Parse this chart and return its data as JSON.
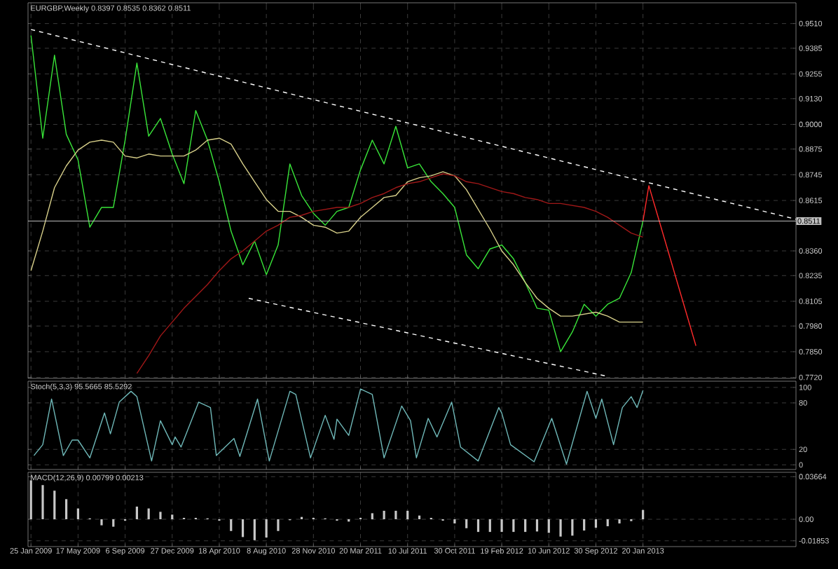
{
  "chart_data": [
    {
      "type": "line",
      "title": "EURGBP,Weekly  0.8397 0.8535 0.8362 0.8511",
      "grid": true,
      "tick_labels": "y",
      "xlim": [
        "2009-01-18",
        "2014-01-19"
      ],
      "xticks": [
        "2009-01-25",
        "2009-05-17",
        "2009-09-06",
        "2009-12-27",
        "2010-04-18",
        "2010-08-08",
        "2010-11-28",
        "2011-03-20",
        "2011-07-10",
        "2011-10-30",
        "2012-02-19",
        "2012-06-10",
        "2012-09-30",
        "2013-01-20"
      ],
      "ylim": [
        0.7715,
        0.9615
      ],
      "yticks": [
        {
          "value": 0.951,
          "label": "0.9510"
        },
        {
          "value": 0.9385,
          "label": "0.9385"
        },
        {
          "value": 0.9255,
          "label": "0.9255"
        },
        {
          "value": 0.913,
          "label": "0.9130"
        },
        {
          "value": 0.9,
          "label": "0.9000"
        },
        {
          "value": 0.8875,
          "label": "0.8875"
        },
        {
          "value": 0.8745,
          "label": "0.8745"
        },
        {
          "value": 0.8615,
          "label": "0.8615"
        },
        {
          "value": 0.836,
          "label": "0.8360"
        },
        {
          "value": 0.8235,
          "label": "0.8235"
        },
        {
          "value": 0.8105,
          "label": "0.8105"
        },
        {
          "value": 0.798,
          "label": "0.7980"
        },
        {
          "value": 0.785,
          "label": "0.7850"
        },
        {
          "value": 0.772,
          "label": "0.7720"
        }
      ],
      "x": [
        "2009-01-25",
        "2009-02-22",
        "2009-03-22",
        "2009-04-19",
        "2009-05-17",
        "2009-06-14",
        "2009-07-12",
        "2009-08-09",
        "2009-09-06",
        "2009-10-04",
        "2009-11-01",
        "2009-11-29",
        "2009-12-27",
        "2010-01-24",
        "2010-02-21",
        "2010-03-21",
        "2010-04-18",
        "2010-05-16",
        "2010-06-13",
        "2010-07-11",
        "2010-08-08",
        "2010-09-05",
        "2010-10-03",
        "2010-10-31",
        "2010-11-28",
        "2010-12-26",
        "2011-01-23",
        "2011-02-20",
        "2011-03-20",
        "2011-04-17",
        "2011-05-15",
        "2011-06-12",
        "2011-07-10",
        "2011-08-07",
        "2011-09-04",
        "2011-10-02",
        "2011-10-30",
        "2011-11-27",
        "2011-12-25",
        "2012-01-22",
        "2012-02-19",
        "2012-03-18",
        "2012-04-15",
        "2012-05-13",
        "2012-06-10",
        "2012-07-08",
        "2012-08-05",
        "2012-09-02",
        "2012-09-30",
        "2012-10-28",
        "2012-11-25",
        "2012-12-23",
        "2013-01-20"
      ],
      "series": [
        {
          "color": "#39e639",
          "values": [
            0.945,
            0.893,
            0.935,
            0.895,
            0.882,
            0.848,
            0.858,
            0.858,
            0.892,
            0.931,
            0.894,
            0.903,
            0.885,
            0.87,
            0.907,
            0.892,
            0.871,
            0.846,
            0.829,
            0.841,
            0.824,
            0.839,
            0.88,
            0.864,
            0.855,
            0.849,
            0.856,
            0.858,
            0.877,
            0.892,
            0.88,
            0.899,
            0.878,
            0.88,
            0.871,
            0.865,
            0.858,
            0.834,
            0.827,
            0.837,
            0.839,
            0.832,
            0.82,
            0.807,
            0.806,
            0.785,
            0.795,
            0.809,
            0.803,
            0.809,
            0.812,
            0.825,
            0.8511
          ]
        },
        {
          "color": "#d8d08a",
          "values": [
            0.826,
            0.846,
            0.868,
            0.879,
            0.887,
            0.891,
            0.892,
            0.891,
            0.884,
            0.883,
            0.885,
            0.884,
            0.884,
            0.884,
            0.887,
            0.892,
            0.893,
            0.89,
            0.88,
            0.871,
            0.862,
            0.856,
            0.856,
            0.853,
            0.849,
            0.848,
            0.845,
            0.846,
            0.853,
            0.858,
            0.863,
            0.864,
            0.871,
            0.873,
            0.874,
            0.876,
            0.874,
            0.867,
            0.857,
            0.847,
            0.836,
            0.829,
            0.82,
            0.812,
            0.807,
            0.803,
            0.803,
            0.804,
            0.805,
            0.803,
            0.8,
            0.8,
            0.8
          ]
        },
        {
          "color": "#a01818",
          "values": [
            null,
            null,
            null,
            null,
            null,
            null,
            null,
            null,
            null,
            0.774,
            0.783,
            0.793,
            0.8,
            0.807,
            0.813,
            0.819,
            0.826,
            0.832,
            0.836,
            0.841,
            0.846,
            0.849,
            0.853,
            0.854,
            0.856,
            0.857,
            0.858,
            0.858,
            0.86,
            0.863,
            0.865,
            0.868,
            0.87,
            0.871,
            0.873,
            0.875,
            0.874,
            0.871,
            0.87,
            0.868,
            0.866,
            0.865,
            0.863,
            0.862,
            0.86,
            0.86,
            0.859,
            0.858,
            0.856,
            0.853,
            0.849,
            0.845,
            0.843
          ]
        },
        {
          "color": "#ffffff",
          "line_style": "dashed",
          "x": [
            "2009-01-25",
            "2014-01-19"
          ],
          "values": [
            0.948,
            0.852
          ]
        },
        {
          "color": "#ffffff",
          "line_style": "dashed",
          "x": [
            "2010-06-27",
            "2012-10-28"
          ],
          "values": [
            0.812,
            0.7725
          ]
        },
        {
          "color": "#ff2a2a",
          "x": [
            "2013-01-20",
            "2013-02-03",
            "2013-05-26"
          ],
          "values": [
            0.851,
            0.869,
            0.788
          ]
        }
      ],
      "ref_lines": [
        {
          "axis": "y",
          "value": 0.8511,
          "label": "0.8511",
          "color": "#c0c0c0"
        }
      ]
    },
    {
      "type": "line",
      "title": "Stoch(5,3,3) 95.5665 85.5292",
      "grid": true,
      "tick_labels": "y",
      "xlim": [
        "2009-01-18",
        "2014-01-19"
      ],
      "xticks": [
        "2009-01-25",
        "2009-05-17",
        "2009-09-06",
        "2009-12-27",
        "2010-04-18",
        "2010-08-08",
        "2010-11-28",
        "2011-03-20",
        "2011-07-10",
        "2011-10-30",
        "2012-02-19",
        "2012-06-10",
        "2012-09-30",
        "2013-01-20"
      ],
      "ylim": [
        -6,
        108
      ],
      "yticks": [
        0,
        20,
        80,
        100
      ],
      "series": [
        {
          "color": "#6fb8b8",
          "x": [
            "2009-02-01",
            "2009-02-22",
            "2009-03-15",
            "2009-04-12",
            "2009-05-03",
            "2009-05-17",
            "2009-06-14",
            "2009-07-19",
            "2009-08-02",
            "2009-08-23",
            "2009-09-20",
            "2009-10-04",
            "2009-11-08",
            "2009-11-29",
            "2009-12-27",
            "2010-01-03",
            "2010-01-17",
            "2010-02-28",
            "2010-03-28",
            "2010-04-11",
            "2010-05-23",
            "2010-06-06",
            "2010-07-18",
            "2010-08-15",
            "2010-10-03",
            "2010-10-17",
            "2010-11-21",
            "2010-12-26",
            "2011-01-16",
            "2011-01-23",
            "2011-02-20",
            "2011-03-20",
            "2011-04-17",
            "2011-05-15",
            "2011-06-26",
            "2011-07-17",
            "2011-07-31",
            "2011-08-28",
            "2011-09-18",
            "2011-10-23",
            "2011-11-13",
            "2011-12-25",
            "2012-02-12",
            "2012-02-19",
            "2012-03-11",
            "2012-05-06",
            "2012-06-17",
            "2012-07-22",
            "2012-09-09",
            "2012-09-30",
            "2012-10-14",
            "2012-11-11",
            "2012-12-02",
            "2012-12-23",
            "2013-01-06",
            "2013-01-20"
          ],
          "values": [
            12,
            26,
            85,
            12,
            32,
            32,
            9,
            67,
            40,
            81,
            95,
            88,
            5,
            57,
            26,
            36,
            23,
            81,
            74,
            12,
            34,
            11,
            85,
            5,
            95,
            91,
            9,
            64,
            33,
            59,
            38,
            98,
            91,
            9,
            76,
            57,
            9,
            60,
            36,
            81,
            23,
            5,
            74,
            67,
            26,
            4,
            60,
            1,
            95,
            60,
            85,
            26,
            74,
            88,
            74,
            96
          ]
        }
      ]
    },
    {
      "type": "bar",
      "title": "MACD(12,26,9) 0.00799 0.00213",
      "grid": true,
      "xlim": [
        "2009-01-18",
        "2014-01-19"
      ],
      "xticks": [
        {
          "value": "2009-01-25",
          "label": "25 Jan 2009"
        },
        {
          "value": "2009-05-17",
          "label": "17 May 2009"
        },
        {
          "value": "2009-09-06",
          "label": "6 Sep 2009"
        },
        {
          "value": "2009-12-27",
          "label": "27 Dec 2009"
        },
        {
          "value": "2010-04-18",
          "label": "18 Apr 2010"
        },
        {
          "value": "2010-08-08",
          "label": "8 Aug 2010"
        },
        {
          "value": "2010-11-28",
          "label": "28 Nov 2010"
        },
        {
          "value": "2011-03-20",
          "label": "20 Mar 2011"
        },
        {
          "value": "2011-07-10",
          "label": "10 Jul 2011"
        },
        {
          "value": "2011-10-30",
          "label": "30 Oct 2011"
        },
        {
          "value": "2012-02-19",
          "label": "19 Feb 2012"
        },
        {
          "value": "2012-06-10",
          "label": "10 Jun 2012"
        },
        {
          "value": "2012-09-30",
          "label": "30 Sep 2012"
        },
        {
          "value": "2013-01-20",
          "label": "20 Jan 2013"
        }
      ],
      "ylim": [
        -0.0235,
        0.0404
      ],
      "yticks": [
        0.03664,
        {
          "value": 0,
          "label": "0.00"
        },
        -0.01853
      ],
      "x": [
        "2009-01-25",
        "2009-02-22",
        "2009-03-22",
        "2009-04-19",
        "2009-05-17",
        "2009-06-14",
        "2009-07-12",
        "2009-08-09",
        "2009-09-06",
        "2009-10-04",
        "2009-11-01",
        "2009-11-29",
        "2009-12-27",
        "2010-01-24",
        "2010-02-21",
        "2010-03-21",
        "2010-04-18",
        "2010-05-16",
        "2010-06-13",
        "2010-07-11",
        "2010-08-08",
        "2010-09-05",
        "2010-10-03",
        "2010-10-31",
        "2010-11-28",
        "2010-12-26",
        "2011-01-23",
        "2011-02-20",
        "2011-03-20",
        "2011-04-17",
        "2011-05-15",
        "2011-06-12",
        "2011-07-10",
        "2011-08-07",
        "2011-09-04",
        "2011-10-02",
        "2011-10-30",
        "2011-11-27",
        "2011-12-25",
        "2012-01-22",
        "2012-02-19",
        "2012-03-18",
        "2012-04-15",
        "2012-05-13",
        "2012-06-10",
        "2012-07-08",
        "2012-08-05",
        "2012-09-02",
        "2012-09-30",
        "2012-10-28",
        "2012-11-25",
        "2012-12-23",
        "2013-01-20"
      ],
      "series": [
        {
          "color": "#c8c8c8",
          "values": [
            0.0335,
            0.0294,
            0.0246,
            0.0173,
            0.0093,
            0.0008,
            -0.0052,
            -0.0064,
            -0.0012,
            0.0109,
            0.0093,
            0.0064,
            0.004,
            0.0012,
            0.0012,
            0.0008,
            -0.0012,
            -0.0101,
            -0.0153,
            -0.018,
            -0.0157,
            -0.0101,
            -0.0008,
            0.002,
            0.0012,
            0.0008,
            -0.0012,
            -0.002,
            0.0012,
            0.0052,
            0.0073,
            0.0073,
            0.0073,
            0.0032,
            0.0012,
            -0.0012,
            -0.0036,
            -0.0077,
            -0.0109,
            -0.0109,
            -0.0109,
            -0.0109,
            -0.0109,
            -0.0105,
            -0.0117,
            -0.0149,
            -0.0141,
            -0.0097,
            -0.0073,
            -0.006,
            -0.0036,
            -0.0016,
            0.008
          ]
        }
      ]
    }
  ]
}
